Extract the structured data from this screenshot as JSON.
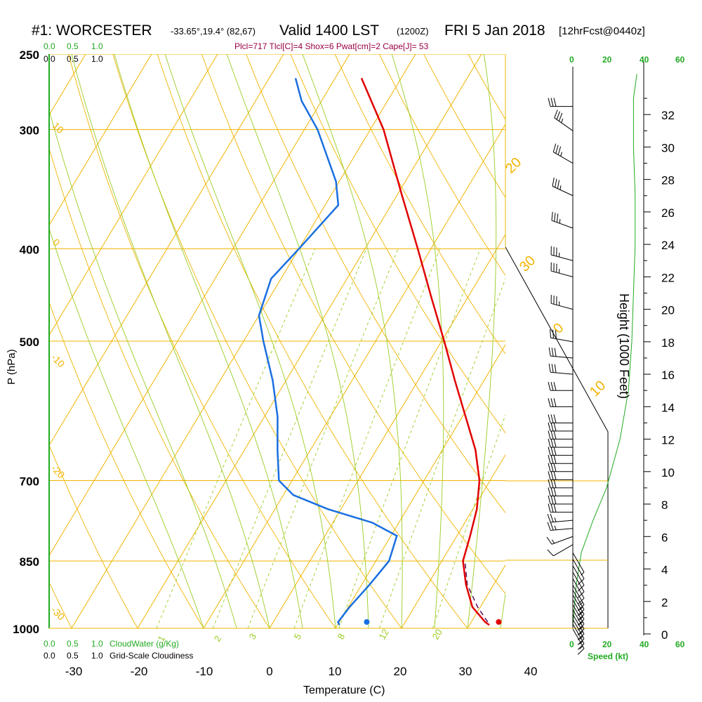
{
  "header": {
    "station": "#1: WORCESTER",
    "coords": "-33.65°,19.4° (82,67)",
    "valid": "Valid 1400 LST",
    "zulu": "(1200Z)",
    "date": "FRI 5 Jan 2018",
    "forecast": "[12hrFcst@0440z]",
    "indices": "Plcl=717 Tlcl[C]=4 Shox=6 Pwat[cm]=2 Cape[J]= 53"
  },
  "scales": {
    "cloud_top_green": [
      "0.0",
      "0.5",
      "1.0"
    ],
    "cloud_top_black": [
      "0.0",
      "0.5",
      "1.0"
    ],
    "cloud_bottom_green": [
      "0.0",
      "0.5",
      "1.0"
    ],
    "cloud_bottom_black": [
      "0.0",
      "0.5",
      "1.0"
    ],
    "cloudwater_label": "CloudWater (g/Kg)",
    "cloudiness_label": "Grid-Scale Cloudiness",
    "speed_ticks": [
      "0",
      "20",
      "40",
      "60"
    ],
    "speed_label": "Speed (kt)"
  },
  "colors": {
    "isotherm": "#f0b400",
    "dry_adiabat": "#f0b400",
    "moist_adiabat": "#99cc22",
    "mixing_ratio": "#99cc22",
    "temperature": "#e00000",
    "dewpoint": "#1a6fe0",
    "parcel": "#5a1060",
    "wind": "#000000",
    "speed_profile": "#22aa22",
    "header_indices": "#990044",
    "green_text": "#22aa22"
  },
  "chart_data": {
    "type": "skew-t",
    "xlabel": "Temperature (C)",
    "ylabel": "P (hPa)",
    "y2label": "Height (1000 Feet)",
    "pressure_ticks": [
      250,
      300,
      400,
      500,
      700,
      850,
      1000
    ],
    "temperature_ticks": [
      -30,
      -20,
      -10,
      0,
      10,
      20,
      30,
      40
    ],
    "height_ticks": [
      0,
      2,
      4,
      6,
      8,
      10,
      12,
      14,
      16,
      18,
      20,
      22,
      24,
      26,
      28,
      30,
      32
    ],
    "dry_adiabat_labels": [
      "-30",
      "-20",
      "-10",
      "0",
      "10",
      "20",
      "30",
      "0",
      "10",
      "20",
      "30"
    ],
    "mixing_ratio_labels": [
      "1",
      "2",
      "3",
      "5",
      "8",
      "12",
      "20"
    ],
    "temperature": [
      {
        "p": 992,
        "t": 33.0
      },
      {
        "p": 985,
        "t": 32.1
      },
      {
        "p": 950,
        "t": 28.8
      },
      {
        "p": 900,
        "t": 25.8
      },
      {
        "p": 850,
        "t": 23.2
      },
      {
        "p": 800,
        "t": 22.0
      },
      {
        "p": 750,
        "t": 20.6
      },
      {
        "p": 700,
        "t": 18.4
      },
      {
        "p": 650,
        "t": 15.0
      },
      {
        "p": 600,
        "t": 10.5
      },
      {
        "p": 550,
        "t": 5.6
      },
      {
        "p": 500,
        "t": 0.4
      },
      {
        "p": 450,
        "t": -5.5
      },
      {
        "p": 400,
        "t": -12.0
      },
      {
        "p": 350,
        "t": -19.5
      },
      {
        "p": 300,
        "t": -28.0
      },
      {
        "p": 265,
        "t": -36.0
      }
    ],
    "dewpoint": [
      {
        "p": 992,
        "t": 10.3
      },
      {
        "p": 985,
        "t": 9.8
      },
      {
        "p": 950,
        "t": 10.2
      },
      {
        "p": 900,
        "t": 11.2
      },
      {
        "p": 850,
        "t": 12.0
      },
      {
        "p": 800,
        "t": 10.9
      },
      {
        "p": 775,
        "t": 6.0
      },
      {
        "p": 750,
        "t": -2.0
      },
      {
        "p": 725,
        "t": -8.5
      },
      {
        "p": 700,
        "t": -12.0
      },
      {
        "p": 650,
        "t": -15.0
      },
      {
        "p": 600,
        "t": -18.0
      },
      {
        "p": 550,
        "t": -22.0
      },
      {
        "p": 500,
        "t": -27.0
      },
      {
        "p": 470,
        "t": -30.0
      },
      {
        "p": 430,
        "t": -31.5
      },
      {
        "p": 400,
        "t": -30.0
      },
      {
        "p": 360,
        "t": -28.0
      },
      {
        "p": 340,
        "t": -30.5
      },
      {
        "p": 300,
        "t": -38.0
      },
      {
        "p": 280,
        "t": -43.0
      },
      {
        "p": 265,
        "t": -46.0
      }
    ],
    "parcel": [
      {
        "p": 985,
        "t": 32.5
      },
      {
        "p": 950,
        "t": 29.6
      },
      {
        "p": 900,
        "t": 26.0
      },
      {
        "p": 850,
        "t": 23.5
      }
    ],
    "surface_temperature": 34.5,
    "surface_dewpoint": 14.5,
    "speed_profile": [
      {
        "h": 0.5,
        "s": 0
      },
      {
        "h": 3,
        "s": 2
      },
      {
        "h": 5,
        "s": 5
      },
      {
        "h": 7,
        "s": 12
      },
      {
        "h": 9,
        "s": 20
      },
      {
        "h": 12,
        "s": 28
      },
      {
        "h": 15,
        "s": 33
      },
      {
        "h": 18,
        "s": 35
      },
      {
        "h": 21,
        "s": 36
      },
      {
        "h": 24,
        "s": 37
      },
      {
        "h": 27,
        "s": 37
      },
      {
        "h": 30,
        "s": 36
      },
      {
        "h": 33,
        "s": 36
      },
      {
        "h": 34.5,
        "s": 38
      }
    ],
    "wind_barbs": [
      {
        "h": 0.3,
        "s": 15,
        "d": 150
      },
      {
        "h": 0.6,
        "s": 15,
        "d": 150
      },
      {
        "h": 0.9,
        "s": 15,
        "d": 150
      },
      {
        "h": 1.2,
        "s": 15,
        "d": 150
      },
      {
        "h": 1.5,
        "s": 15,
        "d": 150
      },
      {
        "h": 1.8,
        "s": 15,
        "d": 150
      },
      {
        "h": 2.1,
        "s": 15,
        "d": 150
      },
      {
        "h": 2.4,
        "s": 15,
        "d": 150
      },
      {
        "h": 2.7,
        "s": 15,
        "d": 150
      },
      {
        "h": 3.0,
        "s": 15,
        "d": 150
      },
      {
        "h": 3.4,
        "s": 10,
        "d": 150
      },
      {
        "h": 3.8,
        "s": 10,
        "d": 150
      },
      {
        "h": 4.2,
        "s": 10,
        "d": 150
      },
      {
        "h": 4.6,
        "s": 10,
        "d": 150
      },
      {
        "h": 5.0,
        "s": 5,
        "d": 150
      },
      {
        "h": 5.5,
        "s": 10,
        "d": 240
      },
      {
        "h": 6.0,
        "s": 15,
        "d": 250
      },
      {
        "h": 6.5,
        "s": 25,
        "d": 265
      },
      {
        "h": 7.0,
        "s": 25,
        "d": 265
      },
      {
        "h": 7.5,
        "s": 30,
        "d": 270
      },
      {
        "h": 8.0,
        "s": 30,
        "d": 270
      },
      {
        "h": 8.5,
        "s": 30,
        "d": 270
      },
      {
        "h": 9.0,
        "s": 30,
        "d": 270
      },
      {
        "h": 9.5,
        "s": 30,
        "d": 270
      },
      {
        "h": 10.0,
        "s": 30,
        "d": 270
      },
      {
        "h": 10.5,
        "s": 30,
        "d": 270
      },
      {
        "h": 11.0,
        "s": 30,
        "d": 270
      },
      {
        "h": 11.5,
        "s": 30,
        "d": 270
      },
      {
        "h": 12.0,
        "s": 30,
        "d": 270
      },
      {
        "h": 12.5,
        "s": 30,
        "d": 270
      },
      {
        "h": 13.0,
        "s": 30,
        "d": 270
      },
      {
        "h": 14.0,
        "s": 30,
        "d": 270
      },
      {
        "h": 15.0,
        "s": 30,
        "d": 270
      },
      {
        "h": 16.0,
        "s": 30,
        "d": 275
      },
      {
        "h": 17.0,
        "s": 30,
        "d": 275
      },
      {
        "h": 18.0,
        "s": 30,
        "d": 280
      },
      {
        "h": 20.0,
        "s": 35,
        "d": 285
      },
      {
        "h": 22.0,
        "s": 35,
        "d": 285
      },
      {
        "h": 23.0,
        "s": 35,
        "d": 285
      },
      {
        "h": 25.0,
        "s": 35,
        "d": 290
      },
      {
        "h": 27.0,
        "s": 35,
        "d": 295
      },
      {
        "h": 29.0,
        "s": 35,
        "d": 300
      },
      {
        "h": 31.0,
        "s": 35,
        "d": 305
      },
      {
        "h": 32.5,
        "s": 30,
        "d": 270
      }
    ]
  }
}
